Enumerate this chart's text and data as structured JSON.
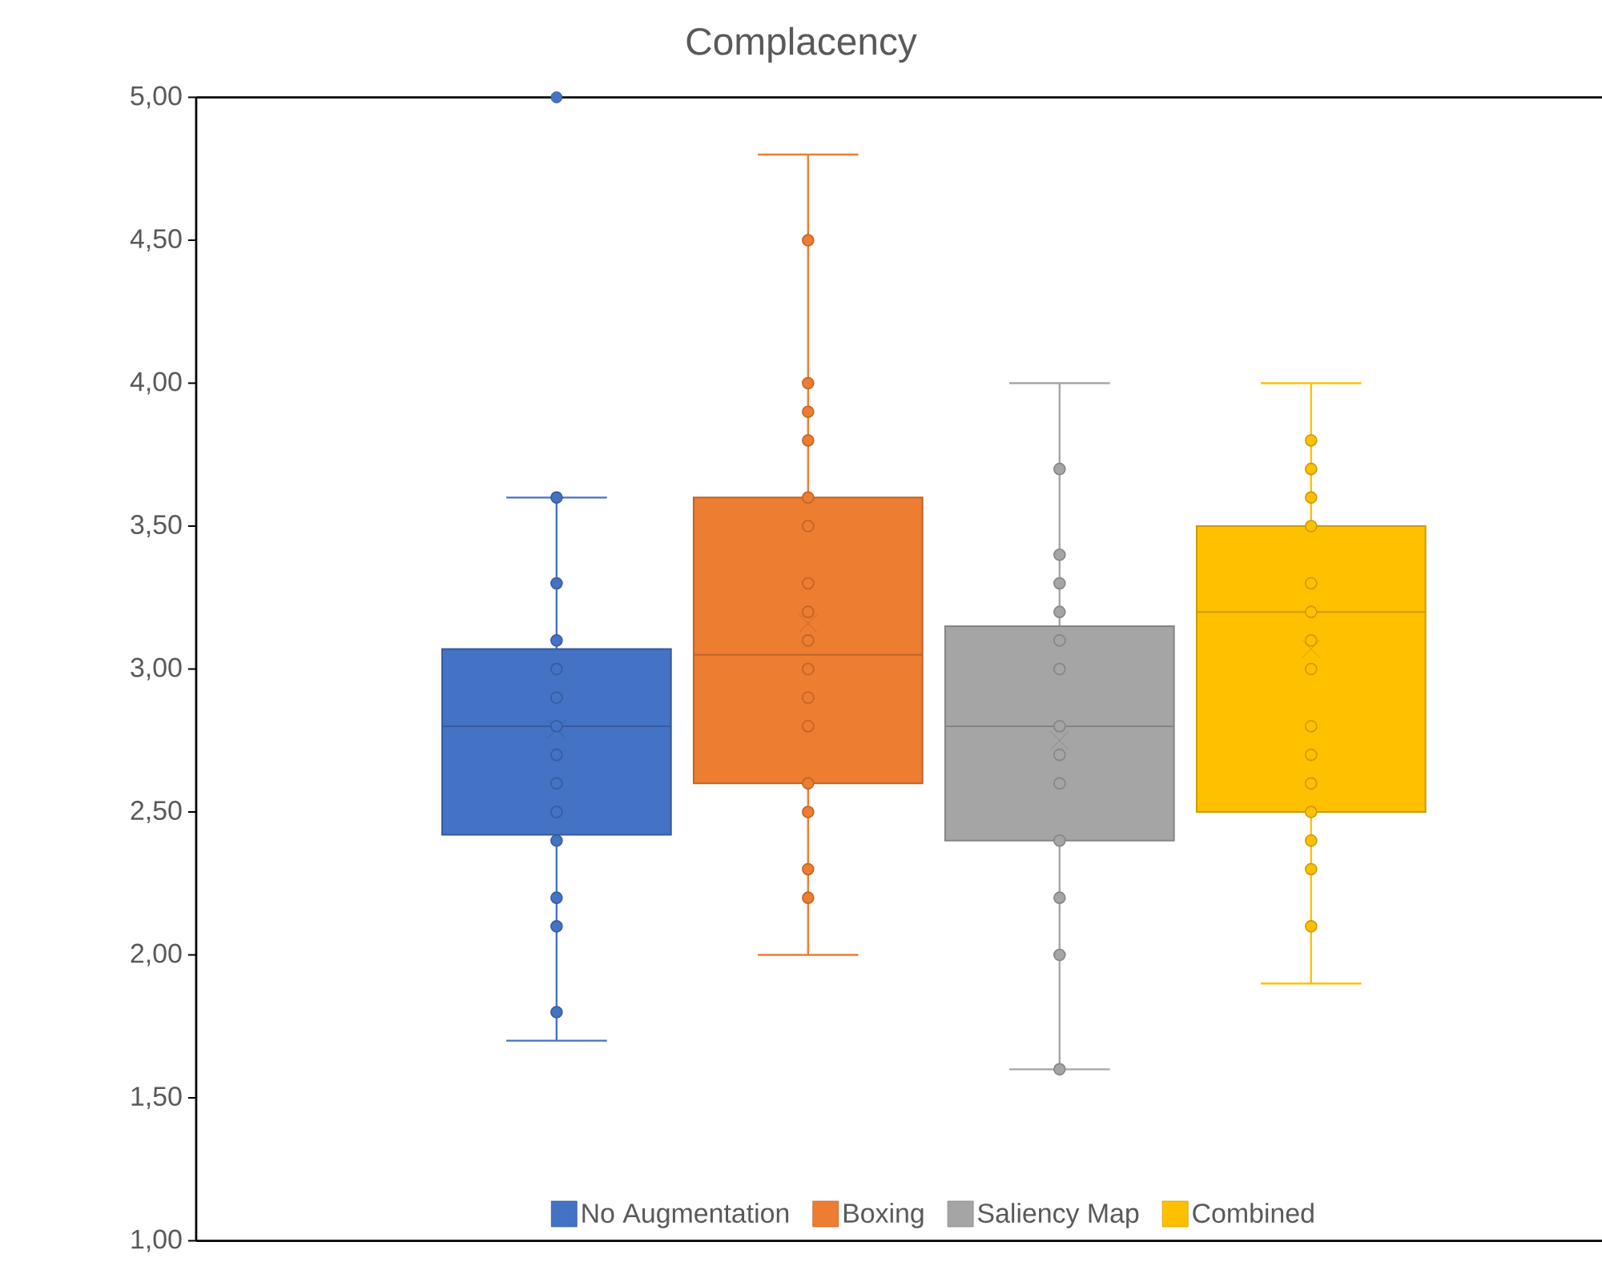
{
  "chart_data": {
    "type": "box",
    "title": "Complacency",
    "categories": [
      null
    ],
    "ylim": [
      1,
      5
    ],
    "yticks": [
      {
        "value": 1,
        "label": "1,00"
      },
      {
        "value": 1.5,
        "label": "1,50"
      },
      {
        "value": 2,
        "label": "2,00"
      },
      {
        "value": 2.5,
        "label": "2,50"
      },
      {
        "value": 3,
        "label": "3,00"
      },
      {
        "value": 3.5,
        "label": "3,50"
      },
      {
        "value": 4,
        "label": "4,00"
      },
      {
        "value": 4.5,
        "label": "4,50"
      },
      {
        "value": 5,
        "label": "5,00"
      }
    ],
    "tick_labels": "y",
    "legend": "bottom",
    "marker": "circle",
    "series": [
      {
        "name": "No Augmentation",
        "color": "#4472c4",
        "boxes": [
          {
            "low": 1.7,
            "q1": 2.42,
            "median": 2.8,
            "q3": 3.07,
            "high": 3.6,
            "mean": 2.79,
            "outliers": [
              5.0
            ]
          }
        ]
      },
      {
        "name": "Boxing",
        "color": "#ed7d31",
        "boxes": [
          {
            "low": 2.0,
            "q1": 2.6,
            "median": 3.05,
            "q3": 3.6,
            "high": 4.8,
            "mean": 3.16
          }
        ]
      },
      {
        "name": "Saliency Map",
        "color": "#a5a5a5",
        "boxes": [
          {
            "low": 1.6,
            "q1": 2.4,
            "median": 2.8,
            "q3": 3.15,
            "high": 4.0,
            "mean": 2.75
          }
        ]
      },
      {
        "name": "Combined",
        "color": "#ffc000",
        "boxes": [
          {
            "low": 1.9,
            "q1": 2.5,
            "median": 3.2,
            "q3": 3.5,
            "high": 4.0,
            "mean": 3.07
          }
        ]
      },
      {
        "type": "scatter",
        "color": "#4472c4",
        "x": [
          null,
          null,
          null,
          null,
          null,
          null,
          null,
          null,
          null,
          null,
          null,
          null,
          null
        ],
        "values": [
          1.8,
          2.1,
          2.2,
          2.4,
          2.5,
          2.6,
          2.7,
          2.8,
          2.9,
          3.0,
          3.1,
          3.3,
          3.6
        ]
      },
      {
        "type": "scatter",
        "color": "#ed7d31",
        "x": [
          null,
          null,
          null,
          null,
          null,
          null,
          null,
          null,
          null,
          null,
          null,
          null,
          null,
          null,
          null,
          null
        ],
        "values": [
          2.2,
          2.3,
          2.5,
          2.6,
          2.8,
          2.9,
          3.0,
          3.1,
          3.2,
          3.3,
          3.5,
          3.6,
          3.8,
          3.9,
          4.0,
          4.5
        ]
      },
      {
        "type": "scatter",
        "color": "#a5a5a5",
        "x": [
          null,
          null,
          null,
          null,
          null,
          null,
          null,
          null,
          null,
          null,
          null,
          null,
          null
        ],
        "values": [
          1.6,
          2.0,
          2.2,
          2.4,
          2.6,
          2.7,
          2.8,
          3.0,
          3.1,
          3.2,
          3.3,
          3.4,
          3.7
        ]
      },
      {
        "type": "scatter",
        "color": "#ffc000",
        "x": [
          null,
          null,
          null,
          null,
          null,
          null,
          null,
          null,
          null,
          null,
          null,
          null,
          null,
          null,
          null
        ],
        "values": [
          2.1,
          2.3,
          2.4,
          2.5,
          2.6,
          2.7,
          2.8,
          3.0,
          3.1,
          3.2,
          3.3,
          3.5,
          3.6,
          3.7,
          3.8
        ]
      }
    ]
  }
}
